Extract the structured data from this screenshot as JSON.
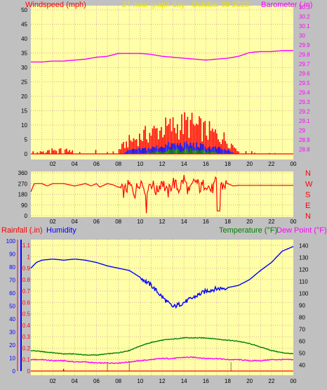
{
  "colors": {
    "background": "#c0c0c0",
    "plot_bg": "#ffffa8",
    "grid": "#d8b0a0",
    "wind": "#ff0000",
    "gust": "#ff3030",
    "wind_blue": "#0000ff",
    "wind_green": "#008000",
    "barometer": "#ff00ff",
    "title": "#e8e000",
    "humidity": "#0000ff",
    "temperature": "#008000",
    "dewpoint": "#ff00ff",
    "rain": "#ff0000",
    "direction": "#ff0000",
    "compass": "#ff0000"
  },
  "chart_data": [
    {
      "type": "bar",
      "name": "wind-speed-barometer",
      "title": "24 hour graph day - October 09 2023",
      "ylabel_left": "Windspeed (mph)",
      "ylabel_right": "Barometer (.in)",
      "x_ticks": [
        "02",
        "04",
        "06",
        "08",
        "10",
        "12",
        "14",
        "16",
        "18",
        "20",
        "22",
        "00"
      ],
      "left_ticks": [
        0,
        5,
        10,
        15,
        20,
        25,
        30,
        35,
        40,
        45,
        50
      ],
      "right_ticks": [
        "28.8",
        "28.9",
        "29",
        "29.1",
        "29.2",
        "29.3",
        "29.4",
        "29.5",
        "29.6",
        "29.7",
        "29.8",
        "29.9",
        "30",
        "30.1",
        "30.2",
        "30.3"
      ],
      "ylim_left": [
        0,
        50
      ],
      "ylim_right": [
        28.75,
        30.3
      ],
      "series": [
        {
          "name": "barometer",
          "hours": [
            0,
            1,
            2,
            3,
            4,
            5,
            6,
            7,
            8,
            9,
            10,
            11,
            12,
            13,
            14,
            15,
            16,
            17,
            18,
            19,
            20,
            21,
            22,
            23,
            24
          ],
          "values": [
            29.72,
            29.72,
            29.73,
            29.73,
            29.74,
            29.75,
            29.77,
            29.78,
            29.81,
            29.81,
            29.81,
            29.8,
            29.78,
            29.77,
            29.76,
            29.75,
            29.74,
            29.75,
            29.76,
            29.78,
            29.82,
            29.83,
            29.83,
            29.84,
            29.84
          ]
        },
        {
          "name": "wind speed envelope",
          "hours": [
            0,
            1,
            2,
            3,
            4,
            5,
            6,
            7,
            8,
            8.5,
            9,
            9.5,
            10,
            10.5,
            11,
            11.5,
            12,
            12.5,
            13,
            13.5,
            14,
            14.5,
            15,
            15.5,
            16,
            16.5,
            17,
            17.5,
            18,
            18.5,
            19,
            20,
            21,
            22,
            23,
            24
          ],
          "values": [
            1,
            1,
            2,
            2,
            1,
            1,
            2,
            1,
            2,
            4,
            6,
            7,
            8,
            9,
            10,
            11,
            12,
            12,
            13,
            13,
            14,
            14,
            13,
            12,
            11,
            10,
            9,
            8,
            6,
            4,
            2,
            1,
            0.5,
            0.3,
            0.2,
            0
          ]
        },
        {
          "name": "wind speed blue",
          "hours": [
            8.5,
            9,
            10,
            11,
            12,
            13,
            14,
            15,
            16,
            17,
            18,
            18.5
          ],
          "values": [
            0.5,
            1.5,
            2,
            2.5,
            3.5,
            4,
            4,
            4,
            3,
            2.5,
            1.5,
            0.5
          ]
        },
        {
          "name": "wind speed green",
          "hours": [
            10,
            11,
            12,
            13,
            14,
            15,
            16,
            17
          ],
          "values": [
            0.3,
            0.8,
            1.2,
            1.8,
            2,
            1.8,
            1.2,
            0.6
          ]
        }
      ]
    },
    {
      "type": "line",
      "name": "wind-direction",
      "y_ticks": [
        "0",
        "90",
        "180",
        "270",
        "360"
      ],
      "ylim": [
        0,
        360
      ],
      "compass_letters": [
        "N",
        "W",
        "S",
        "E",
        "N"
      ],
      "x_ticks": [
        "02",
        "04",
        "06",
        "08",
        "10",
        "12",
        "14",
        "16",
        "18",
        "20",
        "22",
        "00"
      ],
      "series": [
        {
          "name": "direction",
          "hours": [
            0,
            0.3,
            1,
            1.5,
            2,
            3,
            4,
            5,
            5.5,
            6,
            6.3,
            7,
            7.5,
            8,
            8.5,
            9,
            9.5,
            10,
            10.5,
            11,
            11.5,
            12,
            12.5,
            13,
            13.5,
            14,
            14.5,
            15,
            15.5,
            16,
            16.5,
            17,
            17.5,
            18,
            18.5,
            19,
            20,
            21,
            22,
            23,
            24
          ],
          "values": [
            200,
            270,
            270,
            250,
            270,
            270,
            250,
            270,
            250,
            270,
            240,
            270,
            260,
            240,
            200,
            260,
            190,
            300,
            220,
            280,
            200,
            300,
            180,
            290,
            220,
            310,
            190,
            300,
            230,
            280,
            210,
            290,
            250,
            270,
            250,
            255,
            255,
            255,
            255,
            255,
            255
          ]
        }
      ]
    },
    {
      "type": "line",
      "name": "rain-humidity-temperature",
      "label_rain": "Rainfall (.in)",
      "label_humidity": "Humidity",
      "label_temperature": "Temperature (°F)",
      "label_dewpoint": "Dew Point (°F)",
      "x_ticks": [
        "02",
        "04",
        "06",
        "08",
        "10",
        "12",
        "14",
        "16",
        "18",
        "20",
        "22",
        "00"
      ],
      "humidity_ticks": [
        0,
        10,
        20,
        30,
        40,
        50,
        60,
        70,
        80,
        90,
        100
      ],
      "rain_ticks": [
        "0",
        "0.1",
        "0.2",
        "0.3",
        "0.4",
        "0.5",
        "0.6",
        "0.7",
        "0.8",
        "0.9",
        "1",
        "1.1"
      ],
      "temp_ticks": [
        40,
        50,
        60,
        70,
        80,
        90,
        100,
        110,
        120,
        130,
        140
      ],
      "ylim_rain": [
        0,
        1.15
      ],
      "ylim_temp": [
        35,
        145
      ],
      "series": [
        {
          "name": "humidity",
          "hours": [
            0,
            0.5,
            1,
            2,
            3,
            4,
            5,
            6,
            7,
            8,
            9,
            10,
            11,
            12,
            12.5,
            13,
            13.5,
            14,
            15,
            16,
            17,
            18,
            19,
            20,
            21,
            22,
            23,
            24
          ],
          "values": [
            0.9,
            0.95,
            0.97,
            0.98,
            0.97,
            0.98,
            0.97,
            0.95,
            0.92,
            0.9,
            0.88,
            0.82,
            0.75,
            0.65,
            0.6,
            0.56,
            0.58,
            0.6,
            0.65,
            0.7,
            0.72,
            0.73,
            0.75,
            0.8,
            0.88,
            0.95,
            1.05,
            1.09
          ]
        },
        {
          "name": "temperature",
          "hours": [
            0,
            1,
            2,
            3,
            4,
            5,
            6,
            7,
            8,
            9,
            10,
            11,
            12,
            13,
            14,
            15,
            16,
            17,
            18,
            19,
            20,
            21,
            22,
            23,
            24
          ],
          "values": [
            0.18,
            0.17,
            0.16,
            0.15,
            0.15,
            0.14,
            0.14,
            0.15,
            0.16,
            0.18,
            0.22,
            0.25,
            0.27,
            0.28,
            0.29,
            0.29,
            0.29,
            0.28,
            0.27,
            0.26,
            0.24,
            0.21,
            0.18,
            0.16,
            0.15
          ]
        },
        {
          "name": "dew point",
          "hours": [
            0,
            1,
            2,
            3,
            4,
            5,
            6,
            7,
            8,
            9,
            10,
            11,
            12,
            13,
            14,
            15,
            16,
            17,
            18,
            19,
            20,
            21,
            22,
            23,
            24
          ],
          "values": [
            0.1,
            0.1,
            0.09,
            0.09,
            0.08,
            0.08,
            0.07,
            0.07,
            0.07,
            0.08,
            0.09,
            0.1,
            0.11,
            0.11,
            0.12,
            0.12,
            0.11,
            0.11,
            0.1,
            0.1,
            0.09,
            0.09,
            0.1,
            0.1,
            0.1
          ]
        },
        {
          "name": "rainfall",
          "hours": [
            0,
            24
          ],
          "values": [
            0,
            0
          ]
        }
      ]
    }
  ]
}
